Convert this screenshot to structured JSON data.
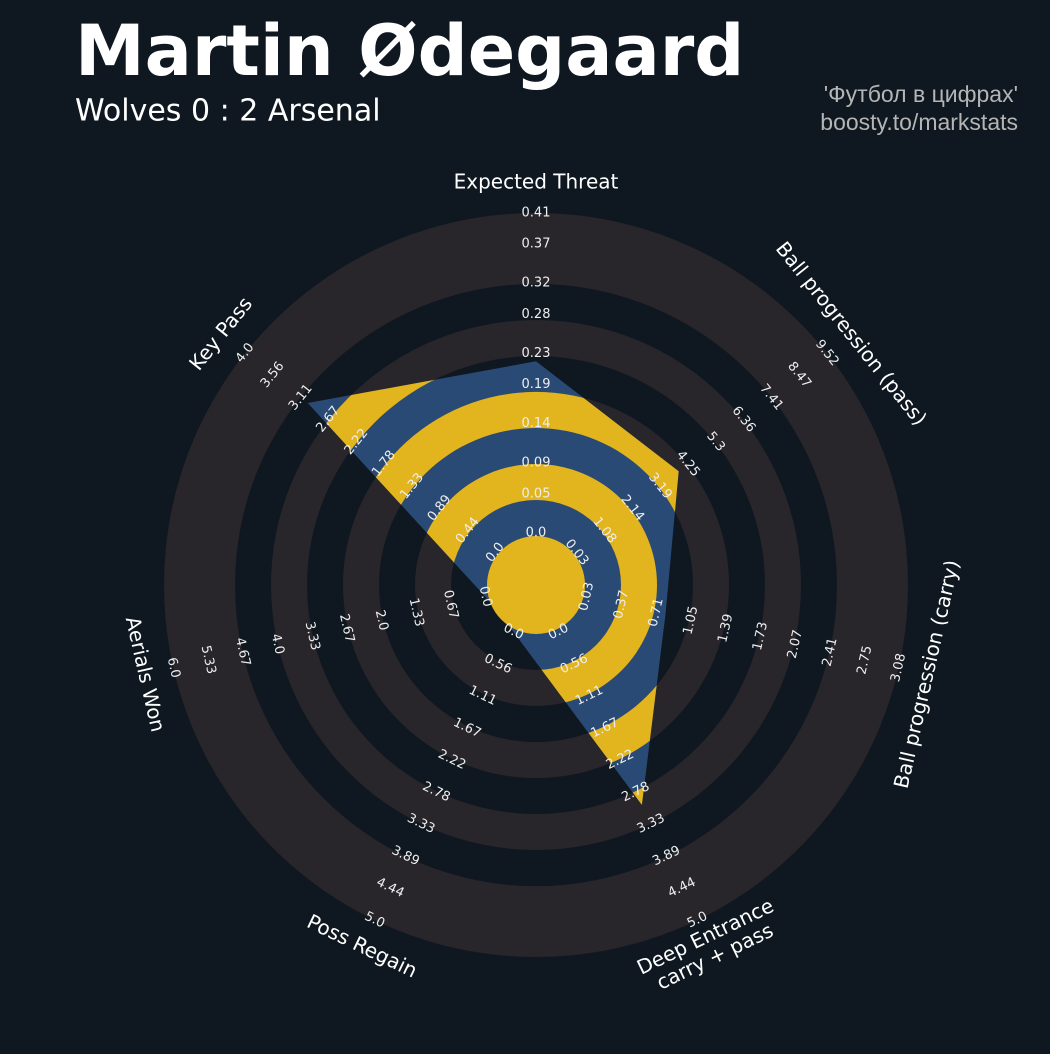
{
  "chart_data": {
    "type": "radar",
    "title": "Martin Ødegaard",
    "subtitle": "Wolves 0 : 2 Arsenal",
    "credits": [
      "'Футбол в цифрах'",
      "boosty.to/markstats"
    ],
    "colors": {
      "polygon": "#2a4a76",
      "polygon_rings": "#e2b41e",
      "background_rings": "#28252b",
      "background": "#0f1820"
    },
    "axes": [
      {
        "label": "Expected Threat",
        "lim": [
          0,
          0.41
        ],
        "ticks": [
          {
            "value": 0,
            "label": "0.0"
          },
          0.05,
          0.09,
          0.14,
          0.19,
          0.23,
          0.28,
          0.32,
          0.37,
          0.41
        ]
      },
      {
        "label": "Ball progression (pass)",
        "lim": [
          0.03,
          9.52
        ],
        "ticks": [
          0.03,
          1.08,
          2.14,
          3.19,
          4.25,
          5.3,
          6.36,
          7.41,
          8.47,
          9.52
        ]
      },
      {
        "label": "Ball progression (carry)",
        "lim": [
          0.03,
          3.08
        ],
        "ticks": [
          0.03,
          0.37,
          0.71,
          1.05,
          1.39,
          1.73,
          2.07,
          2.41,
          2.75,
          3.08
        ]
      },
      {
        "label": [
          "Deep Entrance",
          "carry + pass"
        ],
        "lim": [
          0,
          5
        ],
        "ticks": [
          {
            "value": 0,
            "label": "0.0"
          },
          0.56,
          1.11,
          1.67,
          2.22,
          2.78,
          3.33,
          3.89,
          4.44,
          {
            "value": 5,
            "label": "5.0"
          }
        ]
      },
      {
        "label": "Poss Regain",
        "lim": [
          0,
          5
        ],
        "ticks": [
          {
            "value": 0,
            "label": "0.0"
          },
          0.56,
          1.11,
          1.67,
          2.22,
          2.78,
          3.33,
          3.89,
          4.44,
          {
            "value": 5,
            "label": "5.0"
          }
        ]
      },
      {
        "label": "Aerials Won",
        "lim": [
          0,
          6
        ],
        "ticks": [
          {
            "value": 0,
            "label": "0.0"
          },
          0.67,
          1.33,
          {
            "value": 2,
            "label": "2.0"
          },
          2.67,
          3.33,
          {
            "value": 4,
            "label": "4.0"
          },
          4.67,
          5.33,
          {
            "value": 6,
            "label": "6.0"
          }
        ]
      },
      {
        "label": "Key Pass",
        "lim": [
          0,
          4
        ],
        "ticks": [
          {
            "value": 0,
            "label": "0.0"
          },
          0.44,
          0.89,
          1.33,
          1.78,
          2.22,
          2.67,
          3.11,
          3.56,
          {
            "value": 4,
            "label": "4.0"
          }
        ]
      }
    ],
    "values": [
      0.22,
      3.9,
      0.8,
      3.0,
      0,
      0,
      3.0
    ]
  }
}
